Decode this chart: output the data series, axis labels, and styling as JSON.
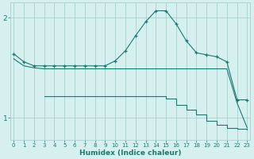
{
  "xlabel": "Humidex (Indice chaleur)",
  "bg_color": "#d6f0f0",
  "grid_color": "#a8d0d0",
  "line_color": "#1a7a6e",
  "x_ticks": [
    0,
    1,
    2,
    3,
    4,
    5,
    6,
    7,
    8,
    9,
    10,
    11,
    12,
    13,
    14,
    15,
    16,
    17,
    18,
    19,
    20,
    21,
    22,
    23
  ],
  "y_ticks": [
    1,
    2
  ],
  "ylim": [
    0.78,
    2.15
  ],
  "xlim": [
    -0.3,
    23.3
  ],
  "line1_x": [
    0,
    1,
    2,
    3,
    4,
    5,
    6,
    7,
    8,
    9,
    10,
    11,
    12,
    13,
    14,
    15,
    16,
    17,
    18,
    19,
    20,
    21,
    22,
    23
  ],
  "line1_y": [
    1.64,
    1.56,
    1.52,
    1.52,
    1.52,
    1.52,
    1.52,
    1.52,
    1.52,
    1.52,
    1.57,
    1.67,
    1.82,
    1.96,
    2.07,
    2.07,
    1.94,
    1.77,
    1.65,
    1.63,
    1.61,
    1.56,
    1.18,
    1.18
  ],
  "line2_x": [
    0,
    1,
    2,
    3,
    4,
    5,
    6,
    7,
    8,
    9,
    10,
    11,
    12,
    13,
    14,
    15,
    16,
    17,
    18,
    19,
    20,
    21,
    22,
    23
  ],
  "line2_y": [
    1.59,
    1.52,
    1.5,
    1.49,
    1.49,
    1.49,
    1.49,
    1.49,
    1.49,
    1.49,
    1.49,
    1.49,
    1.49,
    1.49,
    1.49,
    1.49,
    1.49,
    1.49,
    1.49,
    1.49,
    1.49,
    1.49,
    1.15,
    0.9
  ],
  "line3_x": [
    3,
    4,
    5,
    6,
    7,
    8,
    9,
    10,
    11,
    12,
    13,
    14,
    15,
    16,
    17,
    18,
    19,
    20,
    21,
    22,
    23
  ],
  "line3_y": [
    1.22,
    1.22,
    1.22,
    1.22,
    1.22,
    1.22,
    1.22,
    1.22,
    1.22,
    1.22,
    1.22,
    1.22,
    1.19,
    1.13,
    1.08,
    1.03,
    0.97,
    0.93,
    0.9,
    0.89,
    0.88
  ]
}
